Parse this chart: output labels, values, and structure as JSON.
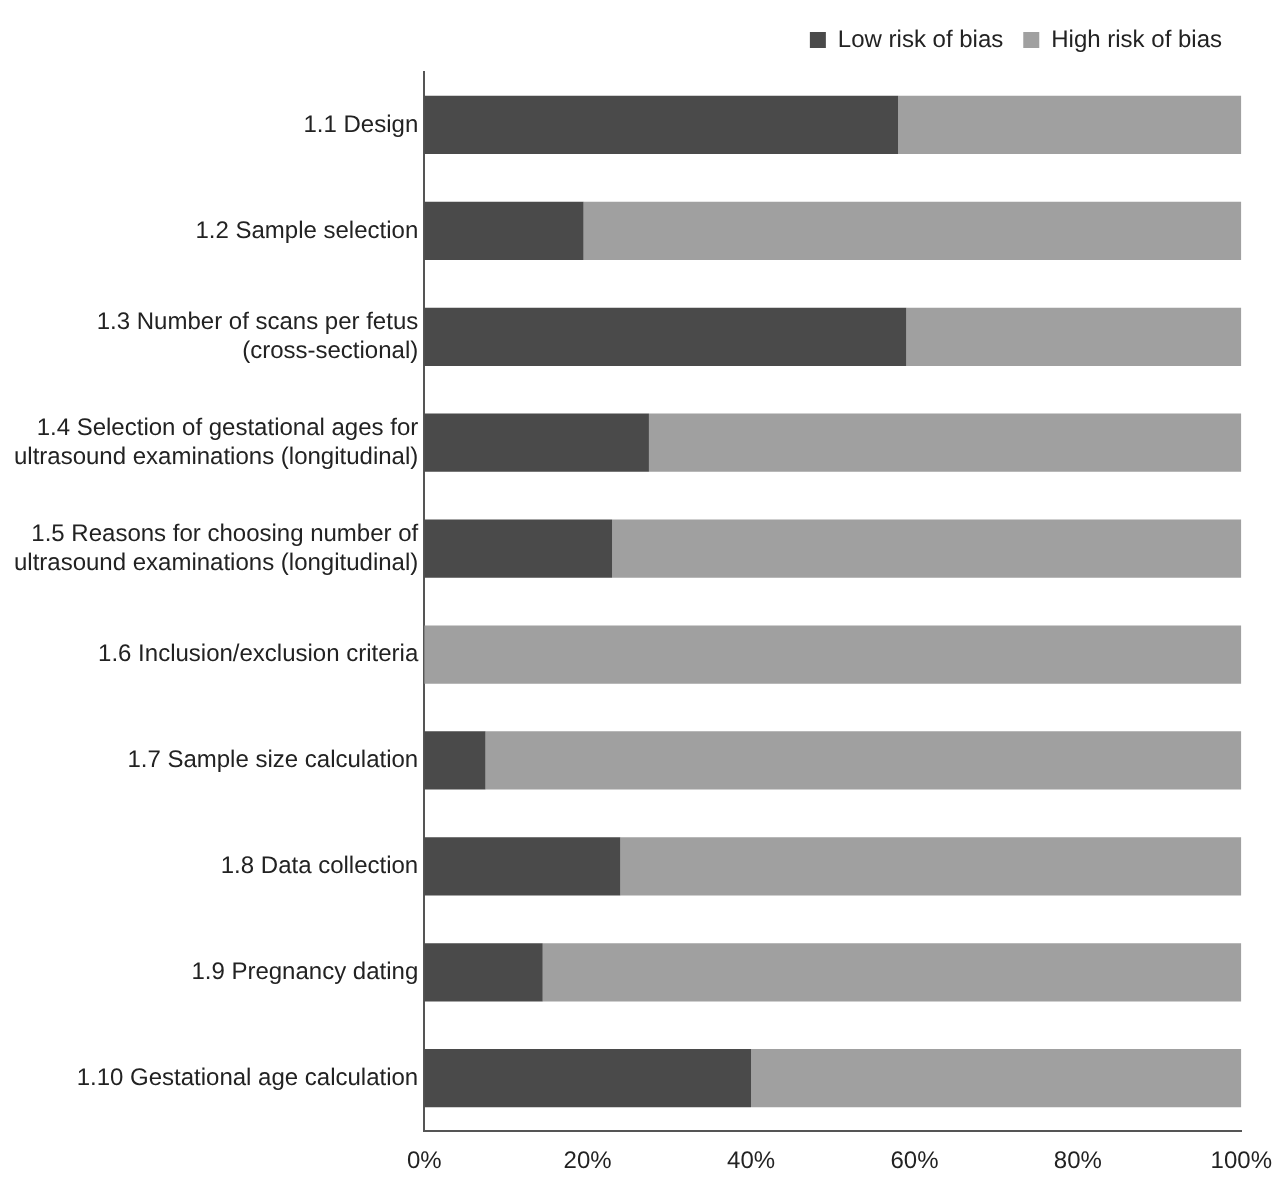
{
  "chart_data": {
    "type": "bar",
    "orientation": "horizontal",
    "stacked": true,
    "categories": [
      "1.1 Design",
      "1.2 Sample selection",
      "1.3 Number of scans per fetus (cross-sectional)",
      "1.4 Selection of gestational ages for ultrasound examinations (longitudinal)",
      "1.5 Reasons for choosing number of ultrasound examinations (longitudinal)",
      "1.6 Inclusion/exclusion criteria",
      "1.7 Sample size calculation",
      "1.8 Data collection",
      "1.9 Pregnancy dating",
      "1.10 Gestational age calculation"
    ],
    "series": [
      {
        "name": "Low risk of bias",
        "color": "#4a4a4a",
        "values": [
          58,
          19.5,
          59,
          27.5,
          23,
          0,
          7.5,
          24,
          14.5,
          40
        ]
      },
      {
        "name": "High risk of bias",
        "color": "#a0a0a0",
        "values": [
          42,
          80.5,
          41,
          72.5,
          77,
          100,
          92.5,
          76,
          85.5,
          60
        ]
      }
    ],
    "xlim": [
      0,
      100
    ],
    "xticks": [
      {
        "value": 0,
        "label": "0%"
      },
      {
        "value": 20,
        "label": "20%"
      },
      {
        "value": 40,
        "label": "40%"
      },
      {
        "value": 60,
        "label": "60%"
      },
      {
        "value": 80,
        "label": "80%"
      },
      {
        "value": 100,
        "label": "100%"
      }
    ],
    "grid": false,
    "legend": "top right"
  }
}
